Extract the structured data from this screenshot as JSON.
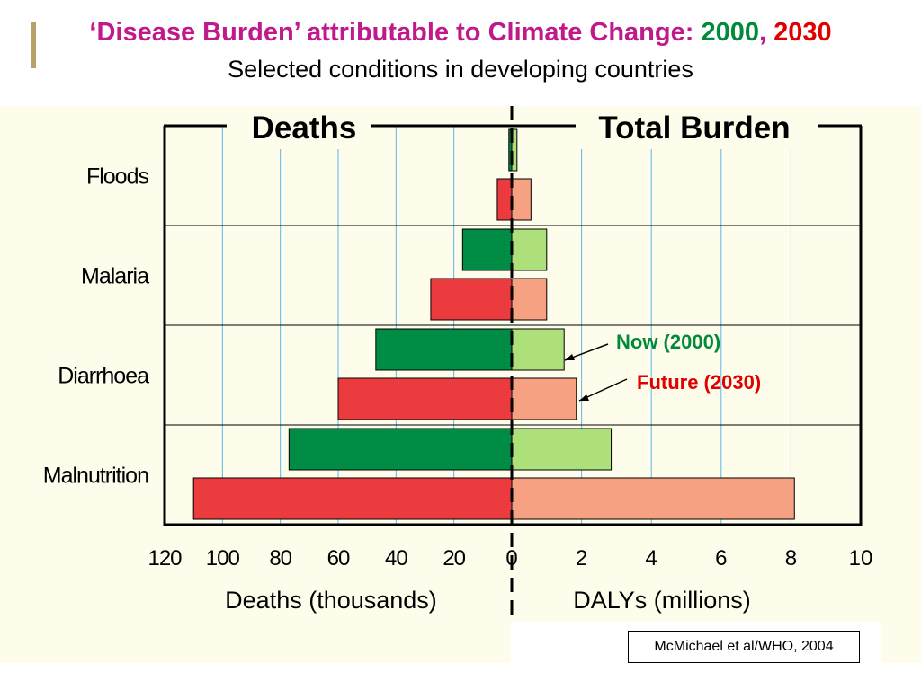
{
  "slide": {
    "title_main": "‘Disease Burden’ attributable to Climate Change: ",
    "title_year_1": "2000",
    "title_sep": ", ",
    "title_year_2": "2030",
    "subtitle": "Selected conditions in developing countries",
    "citation": "McMichael et al/WHO, 2004"
  },
  "colors": {
    "deaths_2000": "#008c45",
    "deaths_2030": "#ec3b3f",
    "dalys_2000": "#addf7a",
    "dalys_2030": "#f5a182",
    "gridline": "#5db8e8",
    "label_now": "#008a3a",
    "label_future": "#e00000"
  },
  "chart_data": {
    "type": "bar",
    "orientation": "horizontal",
    "layout": "back-to-back",
    "categories": [
      "Floods",
      "Malaria",
      "Diarrhoea",
      "Malnutrition"
    ],
    "left_panel": {
      "header": "Deaths",
      "xlabel": "Deaths (thousands)",
      "xlim": [
        0,
        120
      ],
      "ticks": [
        "120",
        "100",
        "80",
        "60",
        "40",
        "20",
        "0"
      ],
      "series": [
        {
          "values": [
            1,
            17,
            47,
            77
          ]
        },
        {
          "values": [
            5,
            28,
            60,
            110
          ]
        }
      ]
    },
    "right_panel": {
      "header": "Total Burden",
      "xlabel": "DALYs (millions)",
      "xlim": [
        0,
        10
      ],
      "ticks": [
        "0",
        "2",
        "4",
        "6",
        "8",
        "10"
      ],
      "series": [
        {
          "values": [
            0.15,
            1.0,
            1.5,
            2.85
          ]
        },
        {
          "values": [
            0.55,
            1.0,
            1.85,
            8.1
          ]
        }
      ]
    },
    "annotations": [
      {
        "text": "Now (2000)"
      },
      {
        "text": "Future (2030)"
      }
    ],
    "grid": true
  }
}
